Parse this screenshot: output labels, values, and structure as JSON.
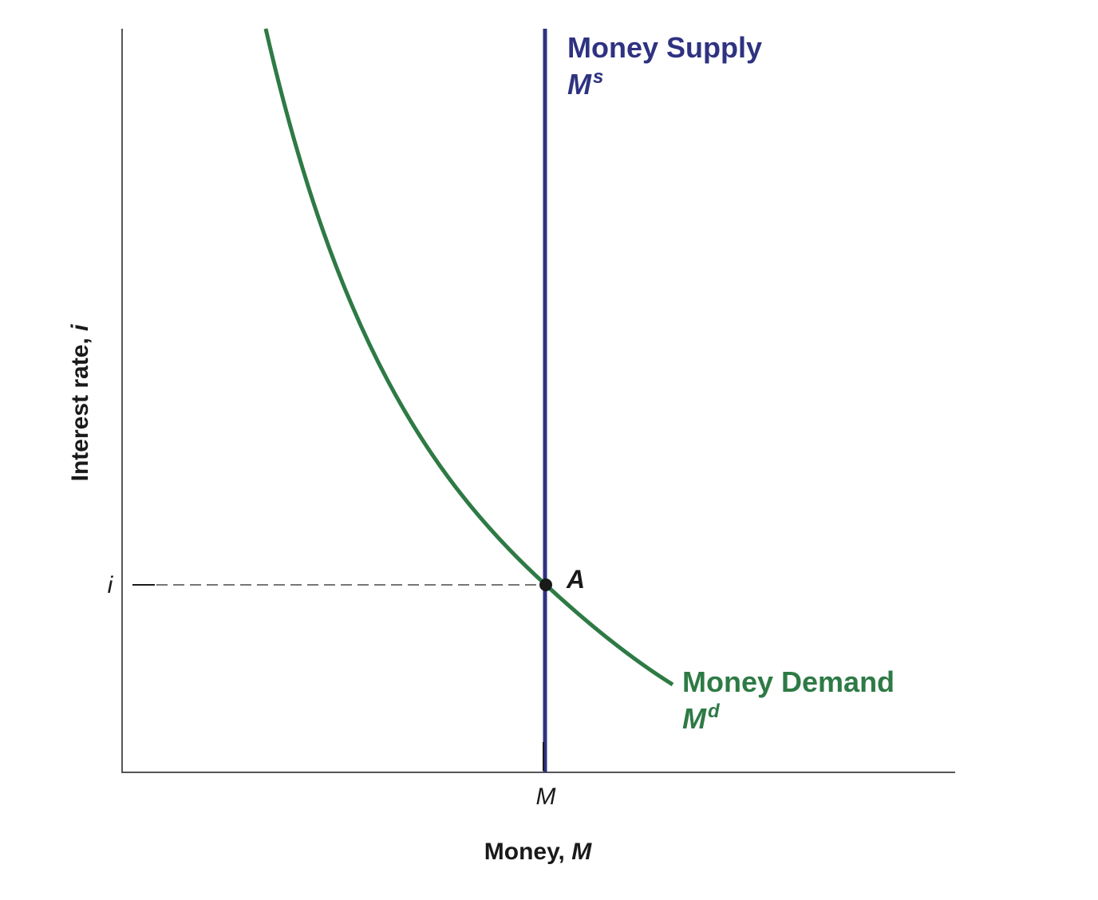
{
  "diagram": {
    "y_axis_label": "Interest rate, ",
    "y_axis_symbol": "i",
    "x_axis_label": "Money, ",
    "x_axis_symbol": "M",
    "y_tick_label": "i",
    "x_tick_label": "M",
    "supply": {
      "name": "Money Supply",
      "symbol": "M",
      "superscript": "s",
      "color": "#2e3280"
    },
    "demand": {
      "name": "Money Demand",
      "symbol": "M",
      "superscript": "d",
      "color": "#2e7a45"
    },
    "equilibrium": {
      "label": "A",
      "color": "#1a1a1a"
    },
    "axis_color": "#555555",
    "guide_color": "#777777"
  }
}
